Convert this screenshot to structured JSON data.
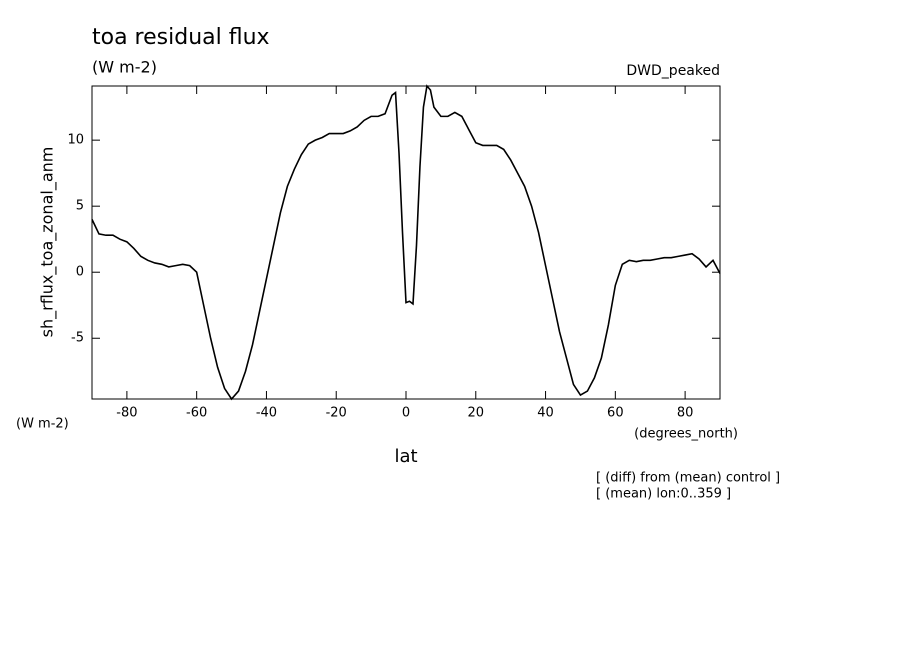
{
  "chart_data": {
    "type": "line",
    "title": "toa residual flux",
    "subtitle": "(W m-2)",
    "dataset_label": "DWD_peaked",
    "y_label": "sh_rflux_toa_zonal_anm",
    "y_units": "(W m-2)",
    "x_label": "lat",
    "x_units": "(degrees_north)",
    "notes": [
      "[ (diff) from (mean) control ]",
      "[ (mean) lon:0..359 ]"
    ],
    "color": "#000000",
    "xlim": [
      -90,
      90
    ],
    "ylim": [
      -9.6,
      14.1
    ],
    "xticks": [
      -80,
      -60,
      -40,
      -20,
      0,
      20,
      40,
      60,
      80
    ],
    "yticks": [
      -5,
      0,
      5,
      10
    ],
    "x": [
      -90,
      -88,
      -86,
      -84,
      -82,
      -80,
      -78,
      -76,
      -74,
      -72,
      -70,
      -68,
      -66,
      -64,
      -62,
      -60,
      -58,
      -56,
      -54,
      -52,
      -50,
      -48,
      -46,
      -44,
      -42,
      -40,
      -38,
      -36,
      -34,
      -32,
      -30,
      -28,
      -26,
      -24,
      -22,
      -20,
      -18,
      -16,
      -14,
      -12,
      -10,
      -8,
      -6,
      -4,
      -3,
      -2,
      -1,
      0,
      1,
      2,
      3,
      4,
      5,
      6,
      7,
      8,
      10,
      12,
      14,
      16,
      18,
      20,
      22,
      24,
      26,
      28,
      30,
      32,
      34,
      36,
      38,
      40,
      42,
      44,
      46,
      48,
      50,
      52,
      54,
      56,
      58,
      60,
      62,
      64,
      66,
      68,
      70,
      72,
      74,
      76,
      78,
      80,
      82,
      84,
      86,
      88,
      90
    ],
    "values": [
      4.0,
      2.9,
      2.8,
      2.8,
      2.5,
      2.3,
      1.8,
      1.2,
      0.9,
      0.7,
      0.6,
      0.4,
      0.5,
      0.6,
      0.5,
      0.0,
      -2.5,
      -5.0,
      -7.2,
      -8.8,
      -9.6,
      -9.0,
      -7.5,
      -5.5,
      -3.0,
      -0.5,
      2.0,
      4.5,
      6.5,
      7.8,
      8.9,
      9.7,
      10.0,
      10.2,
      10.5,
      10.5,
      10.5,
      10.7,
      11.0,
      11.5,
      11.8,
      11.8,
      12.0,
      13.4,
      13.6,
      9.0,
      3.0,
      -2.3,
      -2.2,
      -2.4,
      2.0,
      8.0,
      12.5,
      14.1,
      13.8,
      12.5,
      11.8,
      11.8,
      12.1,
      11.8,
      10.8,
      9.8,
      9.6,
      9.6,
      9.6,
      9.3,
      8.5,
      7.5,
      6.5,
      5.0,
      3.0,
      0.5,
      -2.0,
      -4.5,
      -6.5,
      -8.5,
      -9.3,
      -9.0,
      -8.0,
      -6.5,
      -4.0,
      -1.0,
      0.6,
      0.9,
      0.8,
      0.9,
      0.9,
      1.0,
      1.1,
      1.1,
      1.2,
      1.3,
      1.4,
      1.0,
      0.4,
      0.9,
      -0.1
    ]
  }
}
